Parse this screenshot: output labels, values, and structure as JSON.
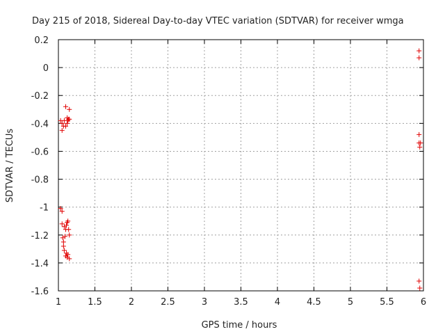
{
  "chart_data": {
    "type": "scatter",
    "title": "Day 215 of 2018, Sidereal Day-to-day VTEC variation (SDTVAR) for receiver wmga",
    "xlabel": "GPS time / hours",
    "ylabel": "SDTVAR / TECUs",
    "xlim": [
      1,
      6
    ],
    "ylim": [
      -1.6,
      0.2
    ],
    "grid": true,
    "x_ticks": [
      1,
      1.5,
      2,
      2.5,
      3,
      3.5,
      4,
      4.5,
      5,
      5.5,
      6
    ],
    "x_tick_labels": [
      "1",
      "1.5",
      "2",
      "2.5",
      "3",
      "3.5",
      "4",
      "4.5",
      "5",
      "5.5",
      "6"
    ],
    "y_ticks": [
      0.2,
      0,
      -0.2,
      -0.4,
      -0.6,
      -0.8,
      -1,
      -1.2,
      -1.4,
      -1.6
    ],
    "y_tick_labels": [
      "0.2",
      "0",
      "-0.2",
      "-0.4",
      "-0.6",
      "-0.8",
      "-1",
      "-1.2",
      "-1.4",
      "-1.6"
    ],
    "marker": "+",
    "marker_color": "#e00000",
    "series": [
      {
        "name": "SDTVAR",
        "points": [
          [
            1.03,
            -0.38
          ],
          [
            1.05,
            -0.4
          ],
          [
            1.05,
            -0.45
          ],
          [
            1.07,
            -0.42
          ],
          [
            1.08,
            -0.38
          ],
          [
            1.1,
            -0.28
          ],
          [
            1.1,
            -0.42
          ],
          [
            1.12,
            -0.36
          ],
          [
            1.12,
            -0.4
          ],
          [
            1.13,
            -0.38
          ],
          [
            1.14,
            -0.37
          ],
          [
            1.15,
            -0.3
          ],
          [
            1.15,
            -0.37
          ],
          [
            1.03,
            -1.01
          ],
          [
            1.05,
            -1.03
          ],
          [
            1.05,
            -1.12
          ],
          [
            1.06,
            -1.22
          ],
          [
            1.07,
            -1.25
          ],
          [
            1.07,
            -1.28
          ],
          [
            1.08,
            -1.14
          ],
          [
            1.09,
            -1.21
          ],
          [
            1.1,
            -1.16
          ],
          [
            1.11,
            -1.13
          ],
          [
            1.12,
            -1.11
          ],
          [
            1.13,
            -1.1
          ],
          [
            1.14,
            -1.16
          ],
          [
            1.15,
            -1.2
          ],
          [
            1.08,
            -1.31
          ],
          [
            1.1,
            -1.35
          ],
          [
            1.11,
            -1.33
          ],
          [
            1.12,
            -1.36
          ],
          [
            1.13,
            -1.34
          ],
          [
            1.15,
            -1.37
          ],
          [
            5.94,
            0.12
          ],
          [
            5.94,
            0.07
          ],
          [
            5.94,
            -0.48
          ],
          [
            5.94,
            -0.54
          ],
          [
            5.95,
            -0.57
          ],
          [
            5.96,
            -0.54
          ],
          [
            5.94,
            -1.53
          ],
          [
            5.95,
            -1.58
          ]
        ]
      }
    ]
  }
}
